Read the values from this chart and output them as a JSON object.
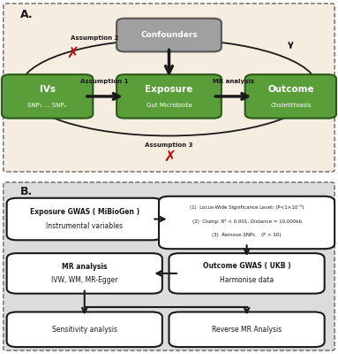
{
  "panel_A_bg": "#f5ede0",
  "panel_B_bg": "#dcdcdc",
  "green_box_color": "#5a9e3a",
  "gray_box_color": "#a0a0a0",
  "white_box_color": "#ffffff",
  "box_edge_color": "#1a1a1a",
  "text_color_white": "#ffffff",
  "text_color_black": "#1a1a1a",
  "arrow_color": "#1a1a1a",
  "red_x_color": "#cc0000",
  "panel_A_label": "A.",
  "panel_B_label": "B.",
  "confounders_text": "Confounders",
  "ivs_line1": "IVs",
  "ivs_line2": "SNP₁ ... SNPₙ",
  "exposure_line1": "Exposure",
  "exposure_line2": "Gut Microbiota",
  "outcome_line1": "Outcome",
  "outcome_line2": "Cholelithiasis",
  "assumption1": "Assumption 1",
  "assumption2": "Assumption 2",
  "assumption3": "Assumption 3",
  "mr_analysis_label": "MR analysis",
  "exp_gwas_line1": "Exposure GWAS ( MiBioGen )",
  "exp_gwas_line2": "Instrumental variables",
  "criteria_line1": "(1)  Locus-Wide Significance Level: (P<1×10⁻⁵)",
  "criteria_line2": "(2)  Clump: R² < 0.001, Distance = 10,000kb",
  "criteria_line3": "(3)  Remove SNPs    (F > 10)",
  "outcome_gwas_line1": "Outcome GWAS ( UKB )",
  "outcome_gwas_line2": "Harmonise data",
  "mr_analysis2_line1": "MR analysis",
  "mr_analysis2_line2": "IVW, WM, MR-Egger",
  "sensitivity_text": "Sensitivity analysis",
  "reverse_mr_text": "Reverse MR Analysis"
}
